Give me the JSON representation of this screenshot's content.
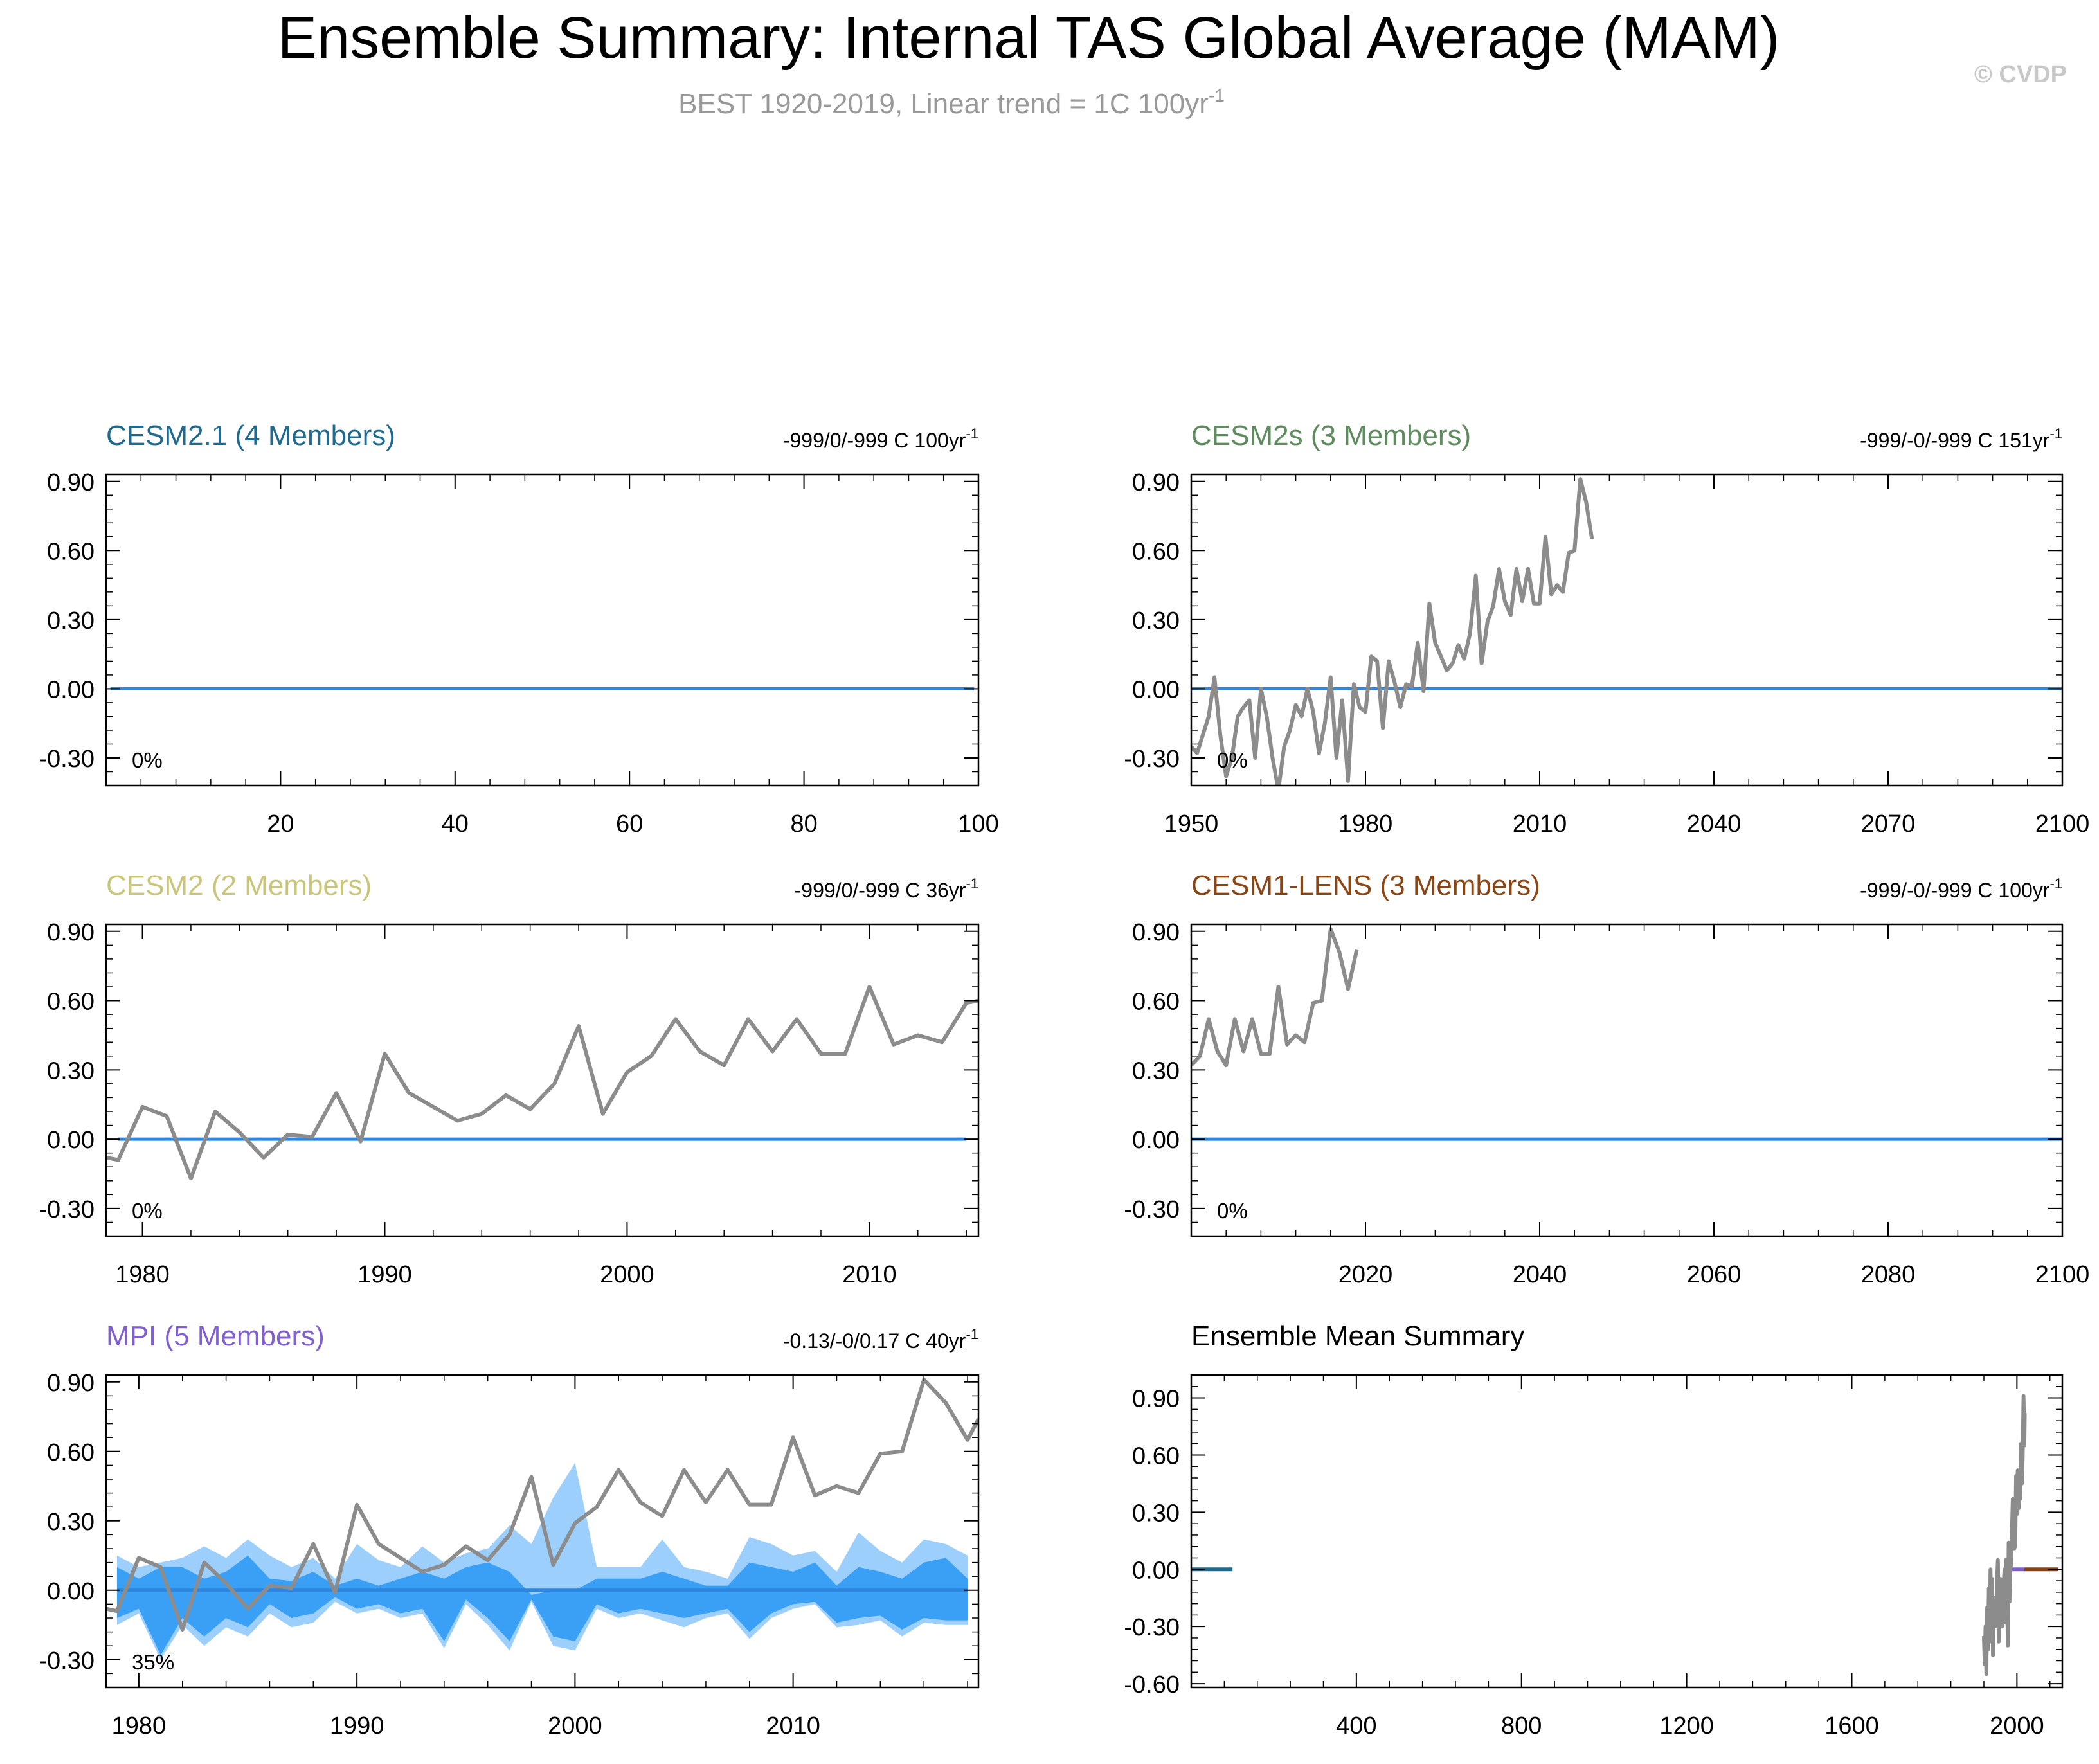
{
  "page": {
    "title": "Ensemble Summary: Internal TAS Global Average (MAM)",
    "subtitle": "BEST 1920-2019, Linear trend = 1C 100yr",
    "subtitle_sup": "-1",
    "copyright": "© CVDP"
  },
  "colors": {
    "obs": "#8c8c8c",
    "zero": "#2e86de",
    "band_outer": "#9ccffc",
    "band_inner": "#3aa0f5",
    "cesm21": "#1f6b8f",
    "cesm2s": "#5e8c5f",
    "cesm2": "#c9c67a",
    "cesm1lens": "#8b4513",
    "mpi": "#8060d0"
  },
  "chart_data": [
    {
      "id": "cesm21",
      "type": "line",
      "title": "CESM2.1 (4 Members)",
      "title_color": "#1f6b8f",
      "trend_label": "-999/0/-999 C 100yr",
      "trend_sup": "-1",
      "percent_label": "0%",
      "xlim": [
        0,
        100
      ],
      "ylim": [
        -0.42,
        0.93
      ],
      "xticks": [
        20,
        40,
        60,
        80,
        100
      ],
      "xtick_labels": [
        "20",
        "40",
        "60",
        "80",
        "100"
      ],
      "yticks": [
        0.9,
        0.6,
        0.3,
        0.0,
        -0.3
      ],
      "ytick_labels": [
        "0.90",
        "0.60",
        "0.30",
        "0.00",
        "-0.30"
      ],
      "zero_line": [
        0.5,
        99.5
      ],
      "obs": null
    },
    {
      "id": "cesm2s",
      "type": "line",
      "title": "CESM2s (3 Members)",
      "title_color": "#5e8c5f",
      "trend_label": "-999/-0/-999 C 151yr",
      "trend_sup": "-1",
      "percent_label": "0%",
      "xlim": [
        1950,
        2100
      ],
      "ylim": [
        -0.42,
        0.93
      ],
      "xticks": [
        1950,
        1980,
        2010,
        2040,
        2070,
        2100
      ],
      "xtick_labels": [
        "1950",
        "1980",
        "2010",
        "2040",
        "2070",
        "2100"
      ],
      "yticks": [
        0.9,
        0.6,
        0.3,
        0.0,
        -0.3
      ],
      "ytick_labels": [
        "0.90",
        "0.60",
        "0.30",
        "0.00",
        "-0.30"
      ],
      "zero_line": [
        1950,
        2100
      ],
      "obs": {
        "x": [
          1950,
          1951,
          1952,
          1953,
          1954,
          1955,
          1956,
          1957,
          1958,
          1959,
          1960,
          1961,
          1962,
          1963,
          1964,
          1965,
          1966,
          1967,
          1968,
          1969,
          1970,
          1971,
          1972,
          1973,
          1974,
          1975,
          1976,
          1977,
          1978,
          1979,
          1980,
          1981,
          1982,
          1983,
          1984,
          1985,
          1986,
          1987,
          1988,
          1989,
          1990,
          1991,
          1992,
          1993,
          1994,
          1995,
          1996,
          1997,
          1998,
          1999,
          2000,
          2001,
          2002,
          2003,
          2004,
          2005,
          2006,
          2007,
          2008,
          2009,
          2010,
          2011,
          2012,
          2013,
          2014,
          2015,
          2016,
          2017,
          2018,
          2019
        ],
        "y": [
          -0.25,
          -0.28,
          -0.2,
          -0.12,
          0.05,
          -0.2,
          -0.38,
          -0.3,
          -0.12,
          -0.08,
          -0.05,
          -0.3,
          0.0,
          -0.12,
          -0.3,
          -0.44,
          -0.25,
          -0.18,
          -0.07,
          -0.12,
          0.0,
          -0.1,
          -0.28,
          -0.15,
          0.05,
          -0.3,
          -0.05,
          -0.4,
          0.02,
          -0.08,
          -0.1,
          0.14,
          0.12,
          -0.17,
          0.12,
          0.03,
          -0.08,
          0.02,
          0.01,
          0.2,
          -0.01,
          0.37,
          0.2,
          0.14,
          0.08,
          0.11,
          0.19,
          0.13,
          0.24,
          0.49,
          0.11,
          0.29,
          0.36,
          0.52,
          0.38,
          0.32,
          0.52,
          0.38,
          0.52,
          0.37,
          0.37,
          0.66,
          0.41,
          0.45,
          0.42,
          0.59,
          0.6,
          0.91,
          0.81,
          0.65
        ]
      }
    },
    {
      "id": "cesm2",
      "type": "line",
      "title": "CESM2 (2 Members)",
      "title_color": "#c9c67a",
      "trend_label": "-999/0/-999 C 36yr",
      "trend_sup": "-1",
      "percent_label": "0%",
      "xlim": [
        1978.5,
        2014.5
      ],
      "ylim": [
        -0.42,
        0.93
      ],
      "xticks": [
        1980,
        1990,
        2000,
        2010
      ],
      "xtick_labels": [
        "1980",
        "1990",
        "2000",
        "2010"
      ],
      "yticks": [
        0.9,
        0.6,
        0.3,
        0.0,
        -0.3
      ],
      "ytick_labels": [
        "0.90",
        "0.60",
        "0.30",
        "0.00",
        "-0.30"
      ],
      "zero_line": [
        1979,
        2014
      ],
      "obs": {
        "x": [
          1978.5,
          1979,
          1980,
          1981,
          1982,
          1983,
          1984,
          1985,
          1986,
          1987,
          1988,
          1989,
          1990,
          1991,
          1992,
          1993,
          1994,
          1995,
          1996,
          1997,
          1998,
          1999,
          2000,
          2001,
          2002,
          2003,
          2004,
          2005,
          2006,
          2007,
          2008,
          2009,
          2010,
          2011,
          2012,
          2013,
          2014,
          2014.5
        ],
        "y": [
          -0.08,
          -0.09,
          0.14,
          0.1,
          -0.17,
          0.12,
          0.03,
          -0.08,
          0.02,
          0.01,
          0.2,
          -0.01,
          0.37,
          0.2,
          0.14,
          0.08,
          0.11,
          0.19,
          0.13,
          0.24,
          0.49,
          0.11,
          0.29,
          0.36,
          0.52,
          0.38,
          0.32,
          0.52,
          0.38,
          0.52,
          0.37,
          0.37,
          0.66,
          0.41,
          0.45,
          0.42,
          0.59,
          0.6
        ]
      }
    },
    {
      "id": "cesm1lens",
      "type": "line",
      "title": "CESM1-LENS (3 Members)",
      "title_color": "#8b4513",
      "trend_label": "-999/-0/-999 C 100yr",
      "trend_sup": "-1",
      "percent_label": "0%",
      "xlim": [
        2000,
        2100
      ],
      "ylim": [
        -0.42,
        0.93
      ],
      "xticks": [
        2020,
        2040,
        2060,
        2080,
        2100
      ],
      "xtick_labels": [
        "2020",
        "2040",
        "2060",
        "2080",
        "2100"
      ],
      "yticks": [
        0.9,
        0.6,
        0.3,
        0.0,
        -0.3
      ],
      "ytick_labels": [
        "0.90",
        "0.60",
        "0.30",
        "0.00",
        "-0.30"
      ],
      "zero_line": [
        2000,
        2100
      ],
      "obs": {
        "x": [
          2000,
          2001,
          2002,
          2003,
          2004,
          2005,
          2006,
          2007,
          2008,
          2009,
          2010,
          2011,
          2012,
          2013,
          2014,
          2015,
          2016,
          2017,
          2018,
          2019
        ],
        "y": [
          0.32,
          0.36,
          0.52,
          0.38,
          0.32,
          0.52,
          0.38,
          0.52,
          0.37,
          0.37,
          0.66,
          0.41,
          0.45,
          0.42,
          0.59,
          0.6,
          0.91,
          0.81,
          0.65,
          0.82
        ]
      }
    },
    {
      "id": "mpi",
      "type": "area",
      "title": "MPI (5 Members)",
      "title_color": "#8060d0",
      "trend_label": "-0.13/-0/0.17 C 40yr",
      "trend_sup": "-1",
      "percent_label": "35%",
      "xlim": [
        1978.5,
        2018.5
      ],
      "ylim": [
        -0.42,
        0.93
      ],
      "xticks": [
        1980,
        1990,
        2000,
        2010
      ],
      "xtick_labels": [
        "1980",
        "1990",
        "2000",
        "2010"
      ],
      "yticks": [
        0.9,
        0.6,
        0.3,
        0.0,
        -0.3
      ],
      "ytick_labels": [
        "0.90",
        "0.60",
        "0.30",
        "0.00",
        "-0.30"
      ],
      "zero_line": [
        1979,
        2018
      ],
      "band": {
        "x": [
          1979,
          1980,
          1981,
          1982,
          1983,
          1984,
          1985,
          1986,
          1987,
          1988,
          1989,
          1990,
          1991,
          1992,
          1993,
          1994,
          1995,
          1996,
          1997,
          1998,
          1999,
          2000,
          2001,
          2002,
          2003,
          2004,
          2005,
          2006,
          2007,
          2008,
          2009,
          2010,
          2011,
          2012,
          2013,
          2014,
          2015,
          2016,
          2017,
          2018
        ],
        "outer_upper": [
          0.15,
          0.1,
          0.12,
          0.14,
          0.19,
          0.14,
          0.22,
          0.15,
          0.1,
          0.14,
          0.05,
          0.2,
          0.13,
          0.1,
          0.19,
          0.12,
          0.16,
          0.18,
          0.28,
          0.2,
          0.4,
          0.55,
          0.1,
          0.1,
          0.1,
          0.22,
          0.1,
          0.08,
          0.05,
          0.23,
          0.2,
          0.15,
          0.17,
          0.08,
          0.25,
          0.17,
          0.12,
          0.22,
          0.2,
          0.15
        ],
        "outer_lower": [
          -0.15,
          -0.1,
          -0.3,
          -0.15,
          -0.24,
          -0.16,
          -0.2,
          -0.1,
          -0.16,
          -0.14,
          -0.05,
          -0.1,
          -0.08,
          -0.12,
          -0.1,
          -0.25,
          -0.06,
          -0.15,
          -0.26,
          -0.05,
          -0.24,
          -0.26,
          -0.08,
          -0.12,
          -0.1,
          -0.13,
          -0.16,
          -0.12,
          -0.1,
          -0.21,
          -0.12,
          -0.08,
          -0.06,
          -0.16,
          -0.15,
          -0.13,
          -0.2,
          -0.14,
          -0.15,
          -0.15
        ],
        "inner_upper": [
          0.1,
          0.05,
          0.1,
          0.1,
          0.05,
          0.08,
          0.15,
          0.05,
          0.04,
          0.08,
          0.02,
          0.05,
          0.02,
          0.05,
          0.08,
          0.05,
          0.1,
          0.12,
          0.08,
          -0.02,
          0.0,
          0.0,
          0.05,
          0.05,
          0.05,
          0.08,
          0.05,
          0.02,
          0.02,
          0.12,
          0.1,
          0.08,
          0.12,
          0.02,
          0.1,
          0.08,
          0.05,
          0.12,
          0.14,
          0.05
        ],
        "inner_lower": [
          -0.12,
          -0.08,
          -0.28,
          -0.12,
          -0.2,
          -0.12,
          -0.16,
          -0.06,
          -0.12,
          -0.1,
          -0.03,
          -0.08,
          -0.06,
          -0.1,
          -0.08,
          -0.22,
          -0.04,
          -0.12,
          -0.22,
          -0.04,
          -0.2,
          -0.22,
          -0.06,
          -0.1,
          -0.08,
          -0.1,
          -0.12,
          -0.1,
          -0.08,
          -0.18,
          -0.1,
          -0.06,
          -0.05,
          -0.14,
          -0.12,
          -0.11,
          -0.17,
          -0.12,
          -0.13,
          -0.13
        ]
      },
      "obs": {
        "x": [
          1978.5,
          1979,
          1980,
          1981,
          1982,
          1983,
          1984,
          1985,
          1986,
          1987,
          1988,
          1989,
          1990,
          1991,
          1992,
          1993,
          1994,
          1995,
          1996,
          1997,
          1998,
          1999,
          2000,
          2001,
          2002,
          2003,
          2004,
          2005,
          2006,
          2007,
          2008,
          2009,
          2010,
          2011,
          2012,
          2013,
          2014,
          2015,
          2016,
          2017,
          2018,
          2018.5
        ],
        "y": [
          -0.08,
          -0.09,
          0.14,
          0.1,
          -0.17,
          0.12,
          0.03,
          -0.08,
          0.02,
          0.01,
          0.2,
          -0.01,
          0.37,
          0.2,
          0.14,
          0.08,
          0.11,
          0.19,
          0.13,
          0.24,
          0.49,
          0.11,
          0.29,
          0.36,
          0.52,
          0.38,
          0.32,
          0.52,
          0.38,
          0.52,
          0.37,
          0.37,
          0.66,
          0.41,
          0.45,
          0.42,
          0.59,
          0.6,
          0.91,
          0.81,
          0.65,
          0.74
        ]
      }
    },
    {
      "id": "ensmean",
      "type": "line",
      "title": "Ensemble Mean Summary",
      "title_color": "#000000",
      "trend_label": "",
      "trend_sup": "",
      "percent_label": "",
      "xlim": [
        0,
        2110
      ],
      "ylim": [
        -0.62,
        1.02
      ],
      "xticks": [
        400,
        800,
        1200,
        1600,
        2000
      ],
      "xtick_labels": [
        "400",
        "800",
        "1200",
        "1600",
        "2000"
      ],
      "yticks": [
        0.9,
        0.6,
        0.3,
        0.0,
        -0.3,
        -0.6
      ],
      "ytick_labels": [
        "0.90",
        "0.60",
        "0.30",
        "0.00",
        "-0.30",
        "-0.60"
      ],
      "segments": [
        {
          "name": "CESM2.1",
          "color": "#1f6b8f",
          "x": [
            0,
            100
          ],
          "y": [
            0.0,
            0.0
          ]
        },
        {
          "name": "MPI",
          "color": "#8060d0",
          "x": [
            1979,
            2018
          ],
          "y": [
            0.0,
            0.0
          ]
        },
        {
          "name": "CESM1-LENS",
          "color": "#8b4513",
          "x": [
            2018,
            2100
          ],
          "y": [
            0.0,
            0.0
          ]
        }
      ],
      "obs": {
        "x": [
          1920,
          1922,
          1924,
          1926,
          1928,
          1930,
          1932,
          1934,
          1936,
          1938,
          1940,
          1942,
          1944,
          1946,
          1948,
          1950,
          1952,
          1954,
          1956,
          1958,
          1960,
          1962,
          1964,
          1966,
          1968,
          1970,
          1972,
          1974,
          1976,
          1978,
          1980,
          1982,
          1984,
          1986,
          1988,
          1990,
          1992,
          1994,
          1996,
          1998,
          2000,
          2002,
          2004,
          2006,
          2008,
          2010,
          2012,
          2014,
          2016,
          2018,
          2019
        ],
        "y": [
          -0.35,
          -0.5,
          -0.3,
          -0.55,
          -0.2,
          -0.42,
          -0.1,
          -0.38,
          0.0,
          -0.3,
          -0.05,
          -0.45,
          -0.15,
          -0.2,
          -0.3,
          -0.25,
          -0.05,
          0.05,
          -0.38,
          -0.12,
          -0.05,
          -0.3,
          -0.3,
          -0.25,
          -0.07,
          0.0,
          -0.28,
          0.05,
          -0.05,
          -0.4,
          0.14,
          -0.17,
          0.03,
          0.02,
          0.2,
          0.37,
          0.14,
          0.11,
          0.13,
          0.49,
          0.29,
          0.52,
          0.32,
          0.38,
          0.37,
          0.66,
          0.45,
          0.59,
          0.91,
          0.65,
          0.82
        ]
      }
    }
  ]
}
